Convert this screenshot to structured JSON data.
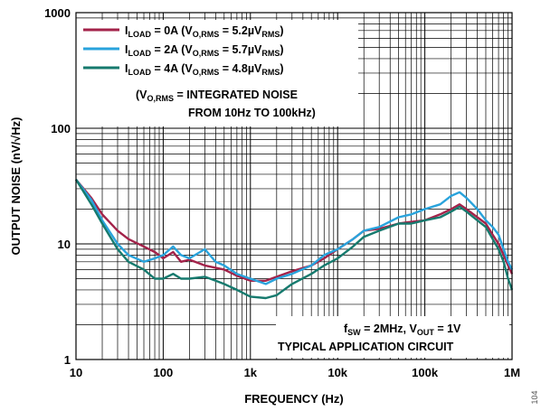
{
  "chart_data": {
    "type": "line",
    "xlabel": "FREQUENCY (Hz)",
    "ylabel": "OUTPUT NOISE (nV/√Hz)",
    "xscale": "log",
    "yscale": "log",
    "xlim": [
      10,
      1000000
    ],
    "ylim": [
      1,
      1000
    ],
    "x_tick_labels": [
      "10",
      "100",
      "1k",
      "10k",
      "100k",
      "1M"
    ],
    "y_tick_labels": [
      "1",
      "10",
      "100",
      "1000"
    ],
    "grid": true,
    "legend_position": "top-left",
    "series": [
      {
        "name": "I_LOAD = 0A (V_O,RMS = 5.2µV_RMS)",
        "color": "#a3234a",
        "points": [
          [
            10,
            36
          ],
          [
            15,
            25
          ],
          [
            20,
            18
          ],
          [
            30,
            13
          ],
          [
            40,
            11
          ],
          [
            60,
            9.5
          ],
          [
            80,
            8.5
          ],
          [
            100,
            7.5
          ],
          [
            130,
            8.5
          ],
          [
            160,
            7
          ],
          [
            200,
            7.3
          ],
          [
            300,
            6.5
          ],
          [
            500,
            6
          ],
          [
            700,
            5.3
          ],
          [
            1000,
            4.8
          ],
          [
            1500,
            4.8
          ],
          [
            2000,
            5.2
          ],
          [
            3000,
            5.8
          ],
          [
            5000,
            6.5
          ],
          [
            7000,
            7.5
          ],
          [
            10000,
            9
          ],
          [
            15000,
            11
          ],
          [
            20000,
            13
          ],
          [
            30000,
            13.5
          ],
          [
            50000,
            15
          ],
          [
            70000,
            15.5
          ],
          [
            100000,
            16
          ],
          [
            150000,
            18
          ],
          [
            200000,
            20
          ],
          [
            250000,
            22
          ],
          [
            300000,
            20
          ],
          [
            400000,
            17
          ],
          [
            500000,
            15
          ],
          [
            600000,
            12
          ],
          [
            700000,
            10
          ],
          [
            800000,
            8
          ],
          [
            900000,
            6.5
          ],
          [
            1000000,
            5.5
          ]
        ]
      },
      {
        "name": "I_LOAD = 2A (V_O,RMS = 5.7µV_RMS)",
        "color": "#29a3dc",
        "points": [
          [
            10,
            36
          ],
          [
            15,
            24
          ],
          [
            20,
            16
          ],
          [
            30,
            10
          ],
          [
            40,
            8
          ],
          [
            60,
            7
          ],
          [
            80,
            7.5
          ],
          [
            100,
            8
          ],
          [
            130,
            9.5
          ],
          [
            160,
            8
          ],
          [
            200,
            7.5
          ],
          [
            300,
            9
          ],
          [
            400,
            7
          ],
          [
            500,
            6.5
          ],
          [
            700,
            5.5
          ],
          [
            1000,
            5
          ],
          [
            1500,
            4.5
          ],
          [
            2000,
            5
          ],
          [
            3000,
            5.5
          ],
          [
            5000,
            6.5
          ],
          [
            7000,
            8
          ],
          [
            10000,
            9
          ],
          [
            15000,
            11
          ],
          [
            20000,
            13
          ],
          [
            30000,
            14
          ],
          [
            50000,
            17
          ],
          [
            70000,
            18
          ],
          [
            100000,
            20
          ],
          [
            150000,
            22
          ],
          [
            200000,
            26
          ],
          [
            250000,
            28
          ],
          [
            300000,
            25
          ],
          [
            400000,
            20
          ],
          [
            500000,
            16
          ],
          [
            600000,
            14
          ],
          [
            700000,
            12
          ],
          [
            800000,
            9
          ],
          [
            900000,
            7
          ],
          [
            1000000,
            6
          ]
        ]
      },
      {
        "name": "I_LOAD = 4A (V_O,RMS = 4.8µV_RMS)",
        "color": "#167a6e",
        "points": [
          [
            10,
            36
          ],
          [
            15,
            22
          ],
          [
            20,
            15
          ],
          [
            30,
            9
          ],
          [
            40,
            7
          ],
          [
            60,
            6
          ],
          [
            80,
            5
          ],
          [
            100,
            5
          ],
          [
            130,
            5.5
          ],
          [
            160,
            5
          ],
          [
            200,
            5
          ],
          [
            300,
            5.2
          ],
          [
            400,
            4.8
          ],
          [
            500,
            4.5
          ],
          [
            700,
            4
          ],
          [
            1000,
            3.5
          ],
          [
            1500,
            3.4
          ],
          [
            2000,
            3.6
          ],
          [
            3000,
            4.5
          ],
          [
            5000,
            5.5
          ],
          [
            7000,
            6.5
          ],
          [
            10000,
            7.5
          ],
          [
            15000,
            9.5
          ],
          [
            20000,
            11.5
          ],
          [
            30000,
            13
          ],
          [
            50000,
            15
          ],
          [
            70000,
            15
          ],
          [
            100000,
            16
          ],
          [
            150000,
            17
          ],
          [
            200000,
            19
          ],
          [
            250000,
            21
          ],
          [
            300000,
            19
          ],
          [
            400000,
            16
          ],
          [
            500000,
            14
          ],
          [
            600000,
            11
          ],
          [
            700000,
            9
          ],
          [
            800000,
            7
          ],
          [
            900000,
            5
          ],
          [
            1000000,
            4
          ]
        ]
      }
    ],
    "legend": [
      {
        "pre": "I",
        "sub1": "LOAD",
        "mid": " = 0A (V",
        "sub2": "O,RMS",
        "mid2": " = 5.2µV",
        "sub3": "RMS",
        "post": ")"
      },
      {
        "pre": "I",
        "sub1": "LOAD",
        "mid": " = 2A (V",
        "sub2": "O,RMS",
        "mid2": " = 5.7µV",
        "sub3": "RMS",
        "post": ")"
      },
      {
        "pre": "I",
        "sub1": "LOAD",
        "mid": " = 4A (V",
        "sub2": "O,RMS",
        "mid2": " = 4.8µV",
        "sub3": "RMS",
        "post": ")"
      }
    ],
    "note": {
      "line1_pre": "(V",
      "line1_sub": "O,RMS",
      "line1_post": " = INTEGRATED NOISE",
      "line2": "FROM 10Hz TO 100kHz)"
    },
    "conditions": {
      "line1_pre": "f",
      "line1_sub1": "SW",
      "line1_mid": " = 2MHz, V",
      "line1_sub2": "OUT",
      "line1_post": " = 1V",
      "line2": "TYPICAL APPLICATION CIRCUIT"
    },
    "figure_id": "104"
  }
}
